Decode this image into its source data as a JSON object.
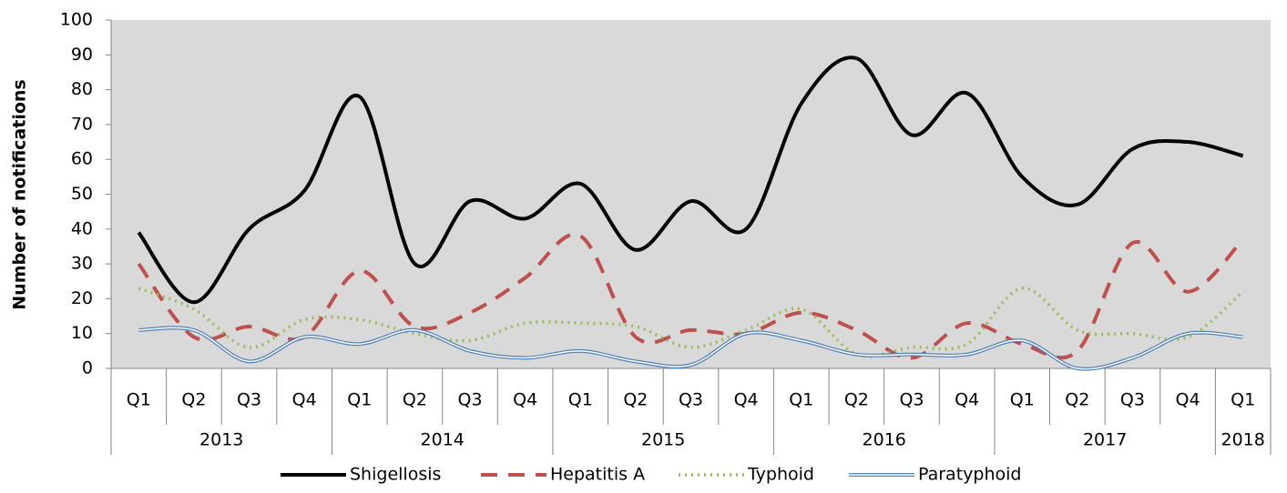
{
  "chart_data": {
    "type": "line",
    "y_label": "Number of notifications",
    "categories": [
      "Q1",
      "Q2",
      "Q3",
      "Q4",
      "Q1",
      "Q2",
      "Q3",
      "Q4",
      "Q1",
      "Q2",
      "Q3",
      "Q4",
      "Q1",
      "Q2",
      "Q3",
      "Q4",
      "Q1",
      "Q2",
      "Q3",
      "Q4",
      "Q1"
    ],
    "category_groups": [
      {
        "label": "2013",
        "span": 4
      },
      {
        "label": "2014",
        "span": 4
      },
      {
        "label": "2015",
        "span": 4
      },
      {
        "label": "2016",
        "span": 4
      },
      {
        "label": "2017",
        "span": 4
      },
      {
        "label": "2018",
        "span": 1
      }
    ],
    "series": [
      {
        "name": "Shigellosis",
        "color": "#000000",
        "style": "solid",
        "values": [
          39,
          19,
          40,
          51,
          78,
          30,
          48,
          43,
          53,
          34,
          48,
          40,
          76,
          89,
          67,
          79,
          55,
          47,
          63,
          65,
          61
        ]
      },
      {
        "name": "Hepatitis A",
        "color": "#c0504d",
        "style": "dashed",
        "values": [
          30,
          9,
          12,
          9,
          28,
          12,
          16,
          26,
          38,
          9,
          11,
          10,
          16,
          11,
          3,
          13,
          7,
          5,
          36,
          22,
          37
        ]
      },
      {
        "name": "Typhoid",
        "color": "#9bbb59",
        "style": "dotted",
        "values": [
          23,
          17,
          6,
          14,
          14,
          10,
          8,
          13,
          13,
          12,
          6,
          11,
          17,
          4,
          6,
          7,
          23,
          11,
          10,
          9,
          22
        ]
      },
      {
        "name": "Paratyphoid",
        "color": "#4f81bd",
        "style": "double",
        "values": [
          11,
          11,
          2,
          9,
          7,
          11,
          5,
          3,
          5,
          2,
          1,
          10,
          8,
          4,
          4,
          4,
          8,
          0,
          3,
          10,
          9
        ]
      }
    ],
    "ylim": [
      0,
      100
    ],
    "yticks": [
      0,
      10,
      20,
      30,
      40,
      50,
      60,
      70,
      80,
      90,
      100
    ],
    "grid": false,
    "background": "#d9d9d9",
    "legend": "bottom"
  }
}
